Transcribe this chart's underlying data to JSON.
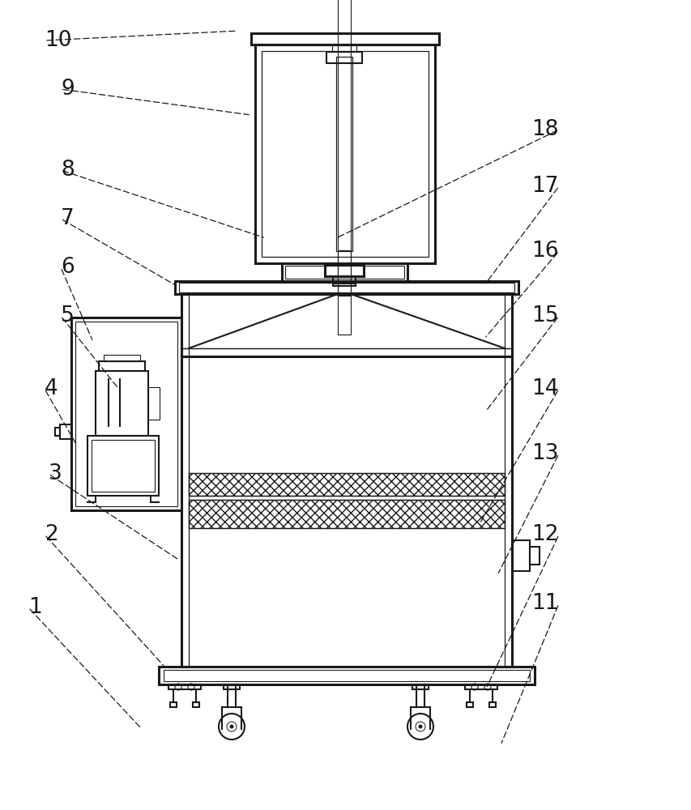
{
  "bg_color": "#ffffff",
  "line_color": "#1a1a1a",
  "lw": 1.5,
  "lw2": 2.2,
  "fig_width": 8.54,
  "fig_height": 10.0,
  "annotations": [
    [
      "10",
      55,
      950,
      295,
      962
    ],
    [
      "9",
      75,
      890,
      310,
      858
    ],
    [
      "8",
      75,
      790,
      328,
      706
    ],
    [
      "7",
      75,
      730,
      220,
      646
    ],
    [
      "6",
      75,
      670,
      115,
      578
    ],
    [
      "5",
      75,
      610,
      148,
      518
    ],
    [
      "4",
      55,
      520,
      95,
      450
    ],
    [
      "3",
      60,
      415,
      222,
      308
    ],
    [
      "2",
      55,
      340,
      204,
      176
    ],
    [
      "1",
      35,
      250,
      175,
      100
    ],
    [
      "18",
      690,
      840,
      415,
      706
    ],
    [
      "17",
      690,
      770,
      598,
      648
    ],
    [
      "16",
      690,
      690,
      598,
      582
    ],
    [
      "15",
      690,
      610,
      598,
      490
    ],
    [
      "14",
      690,
      520,
      590,
      350
    ],
    [
      "13",
      690,
      440,
      614,
      290
    ],
    [
      "12",
      690,
      340,
      600,
      150
    ],
    [
      "11",
      690,
      255,
      618,
      80
    ]
  ]
}
